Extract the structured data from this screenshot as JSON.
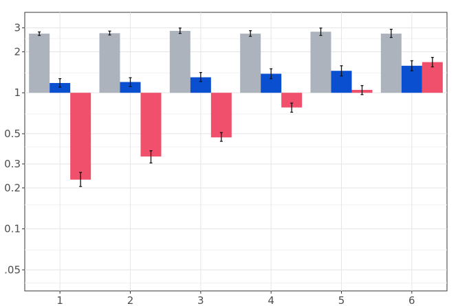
{
  "chart_data": {
    "type": "bar",
    "title": "",
    "xlabel": "",
    "ylabel": "",
    "y_scale": "log",
    "ylim": [
      0.035,
      3.9
    ],
    "baseline": 1,
    "grid": true,
    "categories": [
      "1",
      "2",
      "3",
      "4",
      "5",
      "6"
    ],
    "y_ticks": [
      {
        "value": 0.05,
        "label": ".05"
      },
      {
        "value": 0.1,
        "label": "0.1"
      },
      {
        "value": 0.2,
        "label": "0.2"
      },
      {
        "value": 0.3,
        "label": "0.3"
      },
      {
        "value": 0.5,
        "label": "0.5"
      },
      {
        "value": 1,
        "label": "1"
      },
      {
        "value": 2,
        "label": "2"
      },
      {
        "value": 3,
        "label": "3"
      }
    ],
    "series": [
      {
        "color": "#adb3bd",
        "values": [
          2.72,
          2.74,
          2.85,
          2.72,
          2.81,
          2.72
        ],
        "error_low": [
          2.64,
          2.66,
          2.73,
          2.6,
          2.64,
          2.55
        ],
        "error_high": [
          2.8,
          2.84,
          2.99,
          2.86,
          2.99,
          2.93
        ]
      },
      {
        "color": "#0a4fd0",
        "values": [
          1.18,
          1.2,
          1.3,
          1.38,
          1.45,
          1.58
        ],
        "error_low": [
          1.1,
          1.11,
          1.21,
          1.27,
          1.33,
          1.45
        ],
        "error_high": [
          1.27,
          1.29,
          1.41,
          1.5,
          1.58,
          1.72
        ]
      },
      {
        "color": "#f0506b",
        "values": [
          0.23,
          0.34,
          0.47,
          0.78,
          1.05,
          1.68
        ],
        "error_low": [
          0.205,
          0.305,
          0.44,
          0.72,
          0.97,
          1.55
        ],
        "error_high": [
          0.26,
          0.375,
          0.51,
          0.84,
          1.13,
          1.82
        ]
      }
    ]
  }
}
